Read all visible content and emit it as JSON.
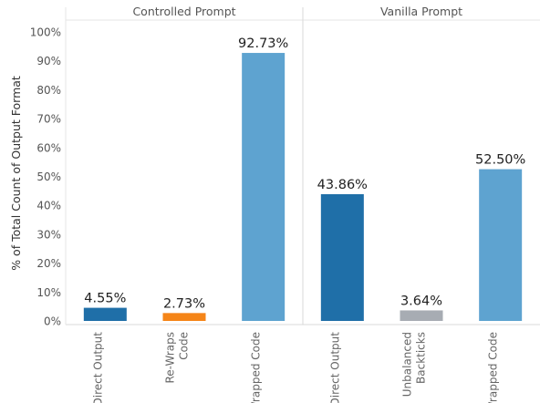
{
  "chart_data": {
    "type": "bar",
    "ylabel": "% of Total Count of Output Format",
    "ylim": [
      0,
      100
    ],
    "yticks": [
      "100%",
      "90%",
      "80%",
      "70%",
      "60%",
      "50%",
      "40%",
      "30%",
      "20%",
      "10%",
      "0%"
    ],
    "grid": false,
    "panels": [
      {
        "title": "Controlled Prompt",
        "bars": [
          {
            "category": "Direct Output",
            "category_lines": [
              "Direct Output"
            ],
            "value": 4.55,
            "label": "4.55%",
            "color": "#1f6fa8"
          },
          {
            "category": "Re-Wraps Code",
            "category_lines": [
              "Re-Wraps",
              "Code"
            ],
            "value": 2.73,
            "label": "2.73%",
            "color": "#f58518"
          },
          {
            "category": "Wrapped Code",
            "category_lines": [
              "Wrapped Code"
            ],
            "value": 92.73,
            "label": "92.73%",
            "color": "#5ea3d0"
          }
        ]
      },
      {
        "title": "Vanilla Prompt",
        "bars": [
          {
            "category": "Direct Output",
            "category_lines": [
              "Direct Output"
            ],
            "value": 43.86,
            "label": "43.86%",
            "color": "#1f6fa8"
          },
          {
            "category": "Unbalanced Backticks",
            "category_lines": [
              "Unbalanced",
              "Backticks"
            ],
            "value": 3.64,
            "label": "3.64%",
            "color": "#a7acb3"
          },
          {
            "category": "Wrapped Code",
            "category_lines": [
              "Wrapped Code"
            ],
            "value": 52.5,
            "label": "52.50%",
            "color": "#5ea3d0"
          }
        ]
      }
    ]
  }
}
